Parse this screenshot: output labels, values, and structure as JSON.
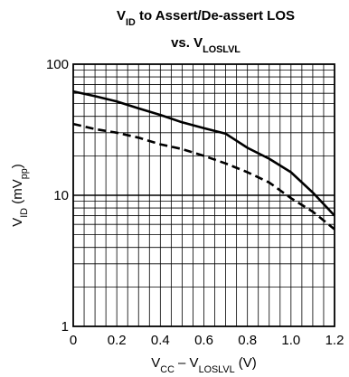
{
  "chart_data": {
    "type": "line",
    "title": {
      "line1": {
        "pre": "V",
        "sub": "ID",
        "post": " to Assert/De-assert LOS"
      },
      "line2": {
        "pre": "vs. V",
        "sub": "LOSLVL",
        "post": ""
      }
    },
    "xlabel": {
      "a": "V",
      "a_sub": "CC",
      "mid": " – V",
      "b_sub": "LOSLVL",
      "post": " (V)"
    },
    "ylabel": {
      "pre": "V",
      "sub": "ID",
      "mid": " (mV",
      "sub2": "pp",
      "post": ")"
    },
    "x_ticks": [
      "0",
      "0.2",
      "0.4",
      "0.6",
      "0.8",
      "1.0",
      "1.2"
    ],
    "y_ticks": [
      "1",
      "10",
      "100"
    ],
    "xlim": [
      0,
      1.2
    ],
    "ylim": [
      1,
      100
    ],
    "y_scale": "log",
    "grid": true,
    "series": [
      {
        "style": "solid",
        "x": [
          0,
          0.1,
          0.2,
          0.3,
          0.4,
          0.5,
          0.6,
          0.7,
          0.8,
          0.9,
          1.0,
          1.1,
          1.2
        ],
        "y": [
          62,
          57,
          52,
          46,
          41,
          36,
          32.5,
          29.5,
          23,
          19,
          15,
          10.5,
          7
        ]
      },
      {
        "style": "dashed",
        "x": [
          0,
          0.1,
          0.2,
          0.3,
          0.4,
          0.5,
          0.6,
          0.7,
          0.8,
          0.9,
          1.0,
          1.1,
          1.2
        ],
        "y": [
          35,
          32,
          30,
          27.5,
          24.5,
          22.5,
          20,
          17.5,
          15,
          12.5,
          9.5,
          7.5,
          5.5
        ]
      }
    ]
  }
}
